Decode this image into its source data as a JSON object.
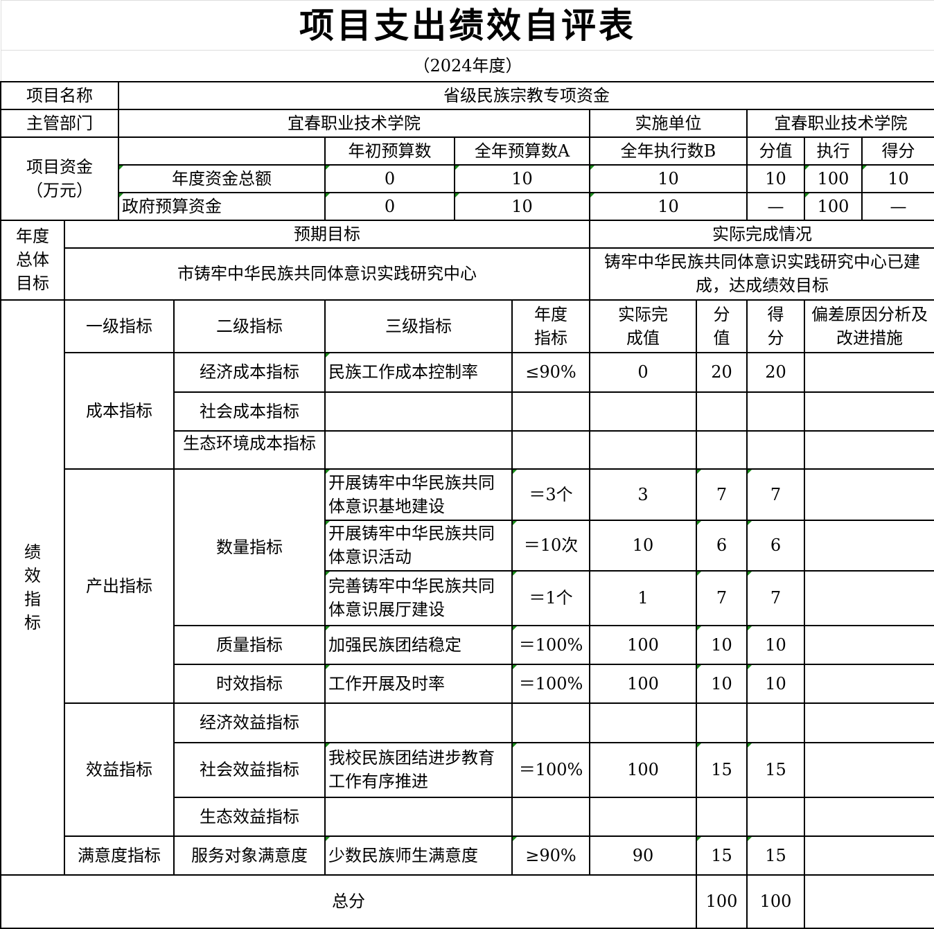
{
  "title": "项目支出绩效自评表",
  "subtitle": "（2024年度）",
  "project": {
    "name_label": "项目名称",
    "name": "省级民族宗教专项资金",
    "dept_label": "主管部门",
    "dept": "宜春职业技术学院",
    "unit_label": "实施单位",
    "unit": "宜春职业技术学院"
  },
  "funds": {
    "label": "项目资金（万元）",
    "headers": [
      "年初预算数",
      "全年预算数A",
      "全年执行数B",
      "分值",
      "执行",
      "得分"
    ],
    "rows": [
      {
        "label": "年度资金总额",
        "values": [
          "0",
          "10",
          "10",
          "10",
          "100",
          "10"
        ]
      },
      {
        "label": "政府预算资金",
        "values": [
          "0",
          "10",
          "10",
          "—",
          "100",
          "—"
        ]
      }
    ]
  },
  "goals": {
    "label": "年度总体目标",
    "expected_header": "预期目标",
    "actual_header": "实际完成情况",
    "expected": "市铸牢中华民族共同体意识实践研究中心",
    "actual": "铸牢中华民族共同体意识实践研究中心已建成，达成绩效目标"
  },
  "indicators": {
    "label": "绩效指标",
    "headers": [
      "一级指标",
      "二级指标",
      "三级指标",
      "年度指标",
      "实际完成值",
      "分值",
      "得分",
      "偏差原因分析及改进措施"
    ],
    "rows": [
      {
        "level1": "成本指标",
        "level2": "经济成本指标",
        "level3": "民族工作成本控制率",
        "target": "≤90%",
        "actual": "0",
        "weight": "20",
        "score": "20",
        "deviation": ""
      },
      {
        "level2": "社会成本指标",
        "level3": "",
        "target": "",
        "actual": "",
        "weight": "",
        "score": "",
        "deviation": ""
      },
      {
        "level2": "生态环境成本指标",
        "level3": "",
        "target": "",
        "actual": "",
        "weight": "",
        "score": "",
        "deviation": ""
      },
      {
        "level1": "产出指标",
        "level2": "数量指标",
        "level3": "开展铸牢中华民族共同体意识基地建设",
        "target": "＝3个",
        "actual": "3",
        "weight": "7",
        "score": "7",
        "deviation": ""
      },
      {
        "level3": "开展铸牢中华民族共同体意识活动",
        "target": "＝10次",
        "actual": "10",
        "weight": "6",
        "score": "6",
        "deviation": ""
      },
      {
        "level3": "完善铸牢中华民族共同体意识展厅建设",
        "target": "＝1个",
        "actual": "1",
        "weight": "7",
        "score": "7",
        "deviation": ""
      },
      {
        "level2": "质量指标",
        "level3": "加强民族团结稳定",
        "target": "＝100%",
        "actual": "100",
        "weight": "10",
        "score": "10",
        "deviation": ""
      },
      {
        "level2": "时效指标",
        "level3": "工作开展及时率",
        "target": "＝100%",
        "actual": "100",
        "weight": "10",
        "score": "10",
        "deviation": ""
      },
      {
        "level1": "效益指标",
        "level2": "经济效益指标",
        "level3": "",
        "target": "",
        "actual": "",
        "weight": "",
        "score": "",
        "deviation": ""
      },
      {
        "level2": "社会效益指标",
        "level3": "我校民族团结进步教育工作有序推进",
        "target": "＝100%",
        "actual": "100",
        "weight": "15",
        "score": "15",
        "deviation": ""
      },
      {
        "level2": "生态效益指标",
        "level3": "",
        "target": "",
        "actual": "",
        "weight": "",
        "score": "",
        "deviation": ""
      },
      {
        "level1": "满意度指标",
        "level2": "服务对象满意度",
        "level3": "少数民族师生满意度",
        "target": "≥90%",
        "actual": "90",
        "weight": "15",
        "score": "15",
        "deviation": ""
      }
    ]
  },
  "total": {
    "label": "总分",
    "weight": "100",
    "score": "100",
    "deviation": ""
  }
}
